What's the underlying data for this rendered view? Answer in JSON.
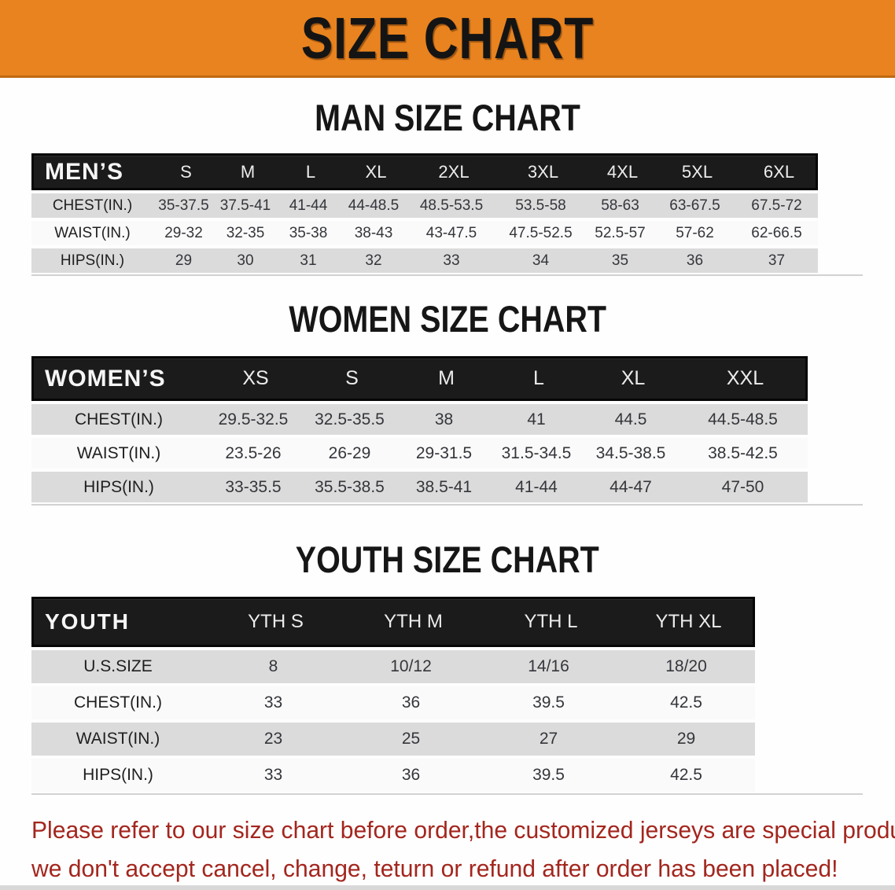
{
  "banner": {
    "title": "SIZE CHART",
    "bg_color": "#e8831f",
    "text_color": "#141414"
  },
  "sections": [
    {
      "heading": "MAN SIZE CHART",
      "table": {
        "corner": "MEN’S",
        "columns": [
          "S",
          "M",
          "L",
          "XL",
          "2XL",
          "3XL",
          "4XL",
          "5XL",
          "6XL"
        ],
        "rows": [
          {
            "label": "CHEST(IN.)",
            "values": [
              "35-37.5",
              "37.5-41",
              "41-44",
              "44-48.5",
              "48.5-53.5",
              "53.5-58",
              "58-63",
              "63-67.5",
              "67.5-72"
            ]
          },
          {
            "label": "WAIST(IN.)",
            "values": [
              "29-32",
              "32-35",
              "35-38",
              "38-43",
              "43-47.5",
              "47.5-52.5",
              "52.5-57",
              "57-62",
              "62-66.5"
            ]
          },
          {
            "label": "HIPS(IN.)",
            "values": [
              "29",
              "30",
              "31",
              "32",
              "33",
              "34",
              "35",
              "36",
              "37"
            ]
          }
        ]
      }
    },
    {
      "heading": "WOMEN SIZE CHART",
      "table": {
        "corner": "WOMEN’S",
        "columns": [
          "XS",
          "S",
          "M",
          "L",
          "XL",
          "XXL"
        ],
        "rows": [
          {
            "label": "CHEST(IN.)",
            "values": [
              "29.5-32.5",
              "32.5-35.5",
              "38",
              "41",
              "44.5",
              "44.5-48.5"
            ]
          },
          {
            "label": "WAIST(IN.)",
            "values": [
              "23.5-26",
              "26-29",
              "29-31.5",
              "31.5-34.5",
              "34.5-38.5",
              "38.5-42.5"
            ]
          },
          {
            "label": "HIPS(IN.)",
            "values": [
              "33-35.5",
              "35.5-38.5",
              "38.5-41",
              "41-44",
              "44-47",
              "47-50"
            ]
          }
        ]
      }
    },
    {
      "heading": "YOUTH SIZE CHART",
      "table": {
        "corner": "YOUTH",
        "columns": [
          "YTH S",
          "YTH M",
          "YTH L",
          "YTH XL"
        ],
        "rows": [
          {
            "label": "U.S.SIZE",
            "values": [
              "8",
              "10/12",
              "14/16",
              "18/20"
            ]
          },
          {
            "label": "CHEST(IN.)",
            "values": [
              "33",
              "36",
              "39.5",
              "42.5"
            ]
          },
          {
            "label": "WAIST(IN.)",
            "values": [
              "23",
              "25",
              "27",
              "29"
            ]
          },
          {
            "label": "HIPS(IN.)",
            "values": [
              "33",
              "36",
              "39.5",
              "42.5"
            ]
          }
        ]
      }
    }
  ],
  "footer": {
    "line1": "Please refer to our size chart before order,the customized jerseys are special products,",
    "line2": "we don't accept cancel, change, teturn or refund after order has been placed!",
    "color": "#a3261e"
  },
  "style_colors": {
    "header_row_bg": "#1b1b1b",
    "grey_row_bg": "#dbdbdb",
    "white_row_bg": "#fafafa"
  }
}
